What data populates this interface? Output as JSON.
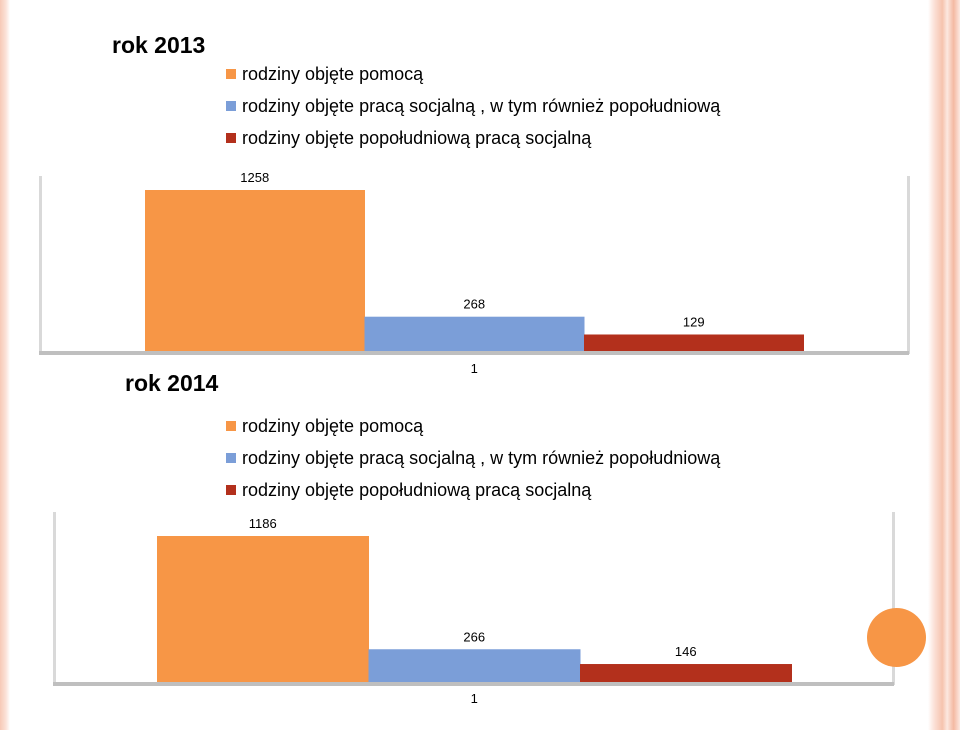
{
  "colors": {
    "pomoc": "#f79646",
    "praca": "#7b9ed8",
    "popoludniowa": "#b3301c"
  },
  "chart_data": [
    {
      "type": "bar",
      "title": "rok 2013",
      "categories": [
        "1"
      ],
      "series": [
        {
          "name": "rodziny objęte pomocą",
          "values": [
            1258
          ]
        },
        {
          "name": "rodziny objęte pracą socjalną , w tym również popołudniową",
          "values": [
            268
          ]
        },
        {
          "name": "rodziny objęte popołudniową pracą socjalną",
          "values": [
            129
          ]
        }
      ],
      "legend_position": "top",
      "grid": false
    },
    {
      "type": "bar",
      "title": "rok 2014",
      "categories": [
        "1"
      ],
      "series": [
        {
          "name": "rodziny objęte pomocą",
          "values": [
            1186
          ]
        },
        {
          "name": "rodziny objęte pracą socjalną , w tym również popołudniową",
          "values": [
            266
          ]
        },
        {
          "name": "rodziny objęte popołudniową pracą socjalną",
          "values": [
            146
          ]
        }
      ],
      "legend_position": "top",
      "grid": false
    }
  ]
}
